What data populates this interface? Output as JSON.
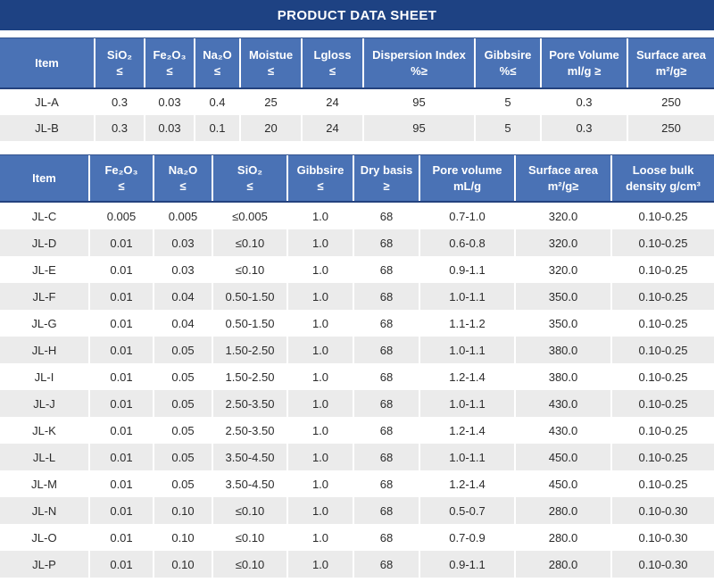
{
  "title": "PRODUCT DATA SHEET",
  "colors": {
    "title_bar": "#1e4283",
    "header_bg": "#4a72b5",
    "header_border_dark": "#24427e",
    "row_alt": "#ebebeb",
    "body_text": "#2b2b2b",
    "header_text": "#ffffff"
  },
  "tables": [
    {
      "name": "grade-table-1",
      "headers": [
        {
          "line1": "Item",
          "line2": ""
        },
        {
          "line1": "SiO₂",
          "line2": "≤"
        },
        {
          "line1": "Fe₂O₃",
          "line2": "≤"
        },
        {
          "line1": "Na₂O",
          "line2": "≤"
        },
        {
          "line1": "Moistue",
          "line2": "≤"
        },
        {
          "line1": "Lgloss",
          "line2": "≤"
        },
        {
          "line1": "Dispersion Index",
          "line2": "%≥"
        },
        {
          "line1": "Gibbsire",
          "line2": "%≤"
        },
        {
          "line1": "Pore Volume",
          "line2": "ml/g ≥"
        },
        {
          "line1": "Surface area",
          "line2": "m²/g≥"
        }
      ],
      "rows": [
        [
          "JL-A",
          "0.3",
          "0.03",
          "0.4",
          "25",
          "24",
          "95",
          "5",
          "0.3",
          "250"
        ],
        [
          "JL-B",
          "0.3",
          "0.03",
          "0.1",
          "20",
          "24",
          "95",
          "5",
          "0.3",
          "250"
        ]
      ]
    },
    {
      "name": "grade-table-2",
      "headers": [
        {
          "line1": "Item",
          "line2": ""
        },
        {
          "line1": "Fe₂O₃",
          "line2": "≤"
        },
        {
          "line1": "Na₂O",
          "line2": "≤"
        },
        {
          "line1": "SiO₂",
          "line2": "≤"
        },
        {
          "line1": "Gibbsire",
          "line2": "≤"
        },
        {
          "line1": "Dry basis",
          "line2": "≥"
        },
        {
          "line1": "Pore volume",
          "line2": "mL/g"
        },
        {
          "line1": "Surface area",
          "line2": "m²/g≥"
        },
        {
          "line1": "Loose bulk",
          "line2": "density g/cm³"
        }
      ],
      "rows": [
        [
          "JL-C",
          "0.005",
          "0.005",
          "≤0.005",
          "1.0",
          "68",
          "0.7-1.0",
          "320.0",
          "0.10-0.25"
        ],
        [
          "JL-D",
          "0.01",
          "0.03",
          "≤0.10",
          "1.0",
          "68",
          "0.6-0.8",
          "320.0",
          "0.10-0.25"
        ],
        [
          "JL-E",
          "0.01",
          "0.03",
          "≤0.10",
          "1.0",
          "68",
          "0.9-1.1",
          "320.0",
          "0.10-0.25"
        ],
        [
          "JL-F",
          "0.01",
          "0.04",
          "0.50-1.50",
          "1.0",
          "68",
          "1.0-1.1",
          "350.0",
          "0.10-0.25"
        ],
        [
          "JL-G",
          "0.01",
          "0.04",
          "0.50-1.50",
          "1.0",
          "68",
          "1.1-1.2",
          "350.0",
          "0.10-0.25"
        ],
        [
          "JL-H",
          "0.01",
          "0.05",
          "1.50-2.50",
          "1.0",
          "68",
          "1.0-1.1",
          "380.0",
          "0.10-0.25"
        ],
        [
          "JL-I",
          "0.01",
          "0.05",
          "1.50-2.50",
          "1.0",
          "68",
          "1.2-1.4",
          "380.0",
          "0.10-0.25"
        ],
        [
          "JL-J",
          "0.01",
          "0.05",
          "2.50-3.50",
          "1.0",
          "68",
          "1.0-1.1",
          "430.0",
          "0.10-0.25"
        ],
        [
          "JL-K",
          "0.01",
          "0.05",
          "2.50-3.50",
          "1.0",
          "68",
          "1.2-1.4",
          "430.0",
          "0.10-0.25"
        ],
        [
          "JL-L",
          "0.01",
          "0.05",
          "3.50-4.50",
          "1.0",
          "68",
          "1.0-1.1",
          "450.0",
          "0.10-0.25"
        ],
        [
          "JL-M",
          "0.01",
          "0.05",
          "3.50-4.50",
          "1.0",
          "68",
          "1.2-1.4",
          "450.0",
          "0.10-0.25"
        ],
        [
          "JL-N",
          "0.01",
          "0.10",
          "≤0.10",
          "1.0",
          "68",
          "0.5-0.7",
          "280.0",
          "0.10-0.30"
        ],
        [
          "JL-O",
          "0.01",
          "0.10",
          "≤0.10",
          "1.0",
          "68",
          "0.7-0.9",
          "280.0",
          "0.10-0.30"
        ],
        [
          "JL-P",
          "0.01",
          "0.10",
          "≤0.10",
          "1.0",
          "68",
          "0.9-1.1",
          "280.0",
          "0.10-0.30"
        ]
      ]
    }
  ]
}
